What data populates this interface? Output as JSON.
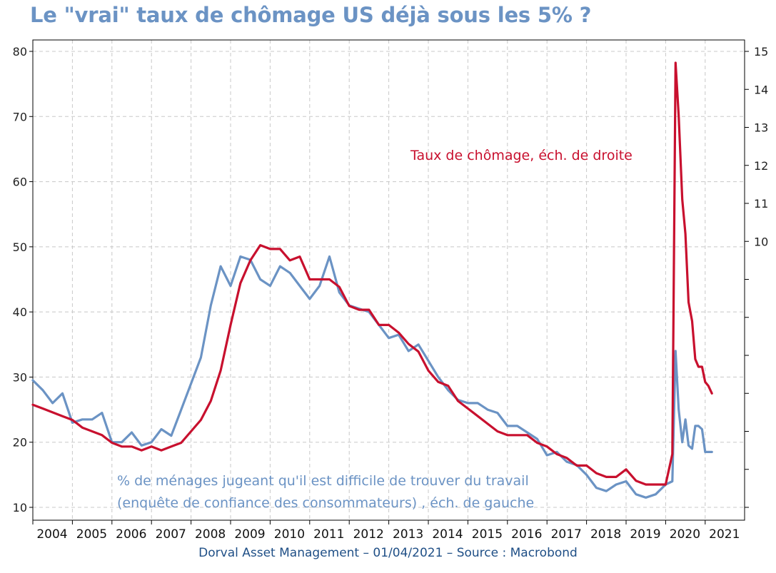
{
  "title": "Le \"vrai\" taux de chômage US déjà sous les 5% ?",
  "footer": "Dorval Asset Management – 01/04/2021 –  Source : Macrobond",
  "colors": {
    "title": "#6b93c4",
    "red_series": "#c8102e",
    "blue_series": "#6b93c4",
    "grid": "#c8c8c8",
    "footer": "#1f4f86"
  },
  "chart_data": {
    "type": "line",
    "title": "Le \"vrai\" taux de chômage US déjà sous les 5% ?",
    "grid": true,
    "x_ticks": [
      "2004",
      "2005",
      "2006",
      "2007",
      "2008",
      "2009",
      "2010",
      "2011",
      "2012",
      "2013",
      "2014",
      "2015",
      "2016",
      "2017",
      "2018",
      "2019",
      "2020",
      "2021"
    ],
    "y_left": {
      "ticks": [
        "10",
        "20",
        "30",
        "40",
        "50",
        "60",
        "70",
        "80"
      ],
      "range": [
        10,
        80
      ]
    },
    "y_right": {
      "labeled_ticks": [
        "10",
        "11",
        "12",
        "13",
        "14",
        "15"
      ],
      "range": [
        3,
        15
      ],
      "note": "ticks from 3 to 9 shown without labels"
    },
    "annotations": {
      "red": "Taux de chômage, éch. de droite",
      "blue_line1": "% de ménages jugeant qu'il est difficile de trouver du travail",
      "blue_line2": "(enquête de confiance des consommateurs) , éch. de gauche"
    },
    "series": [
      {
        "name": "Taux de chômage, éch. de droite",
        "axis": "right",
        "color": "#c8102e",
        "x": [
          2004.0,
          2004.25,
          2004.5,
          2004.75,
          2005.0,
          2005.25,
          2005.5,
          2005.75,
          2006.0,
          2006.25,
          2006.5,
          2006.75,
          2007.0,
          2007.25,
          2007.5,
          2007.75,
          2008.0,
          2008.25,
          2008.5,
          2008.75,
          2009.0,
          2009.25,
          2009.5,
          2009.75,
          2010.0,
          2010.25,
          2010.5,
          2010.75,
          2011.0,
          2011.25,
          2011.5,
          2011.75,
          2012.0,
          2012.25,
          2012.5,
          2012.75,
          2013.0,
          2013.25,
          2013.5,
          2013.75,
          2014.0,
          2014.25,
          2014.5,
          2014.75,
          2015.0,
          2015.25,
          2015.5,
          2015.75,
          2016.0,
          2016.25,
          2016.5,
          2016.75,
          2017.0,
          2017.25,
          2017.5,
          2017.75,
          2018.0,
          2018.25,
          2018.5,
          2018.75,
          2019.0,
          2019.25,
          2019.5,
          2019.75,
          2020.0,
          2020.17,
          2020.25,
          2020.33,
          2020.42,
          2020.5,
          2020.58,
          2020.67,
          2020.75,
          2020.83,
          2020.92,
          2021.0,
          2021.08,
          2021.17
        ],
        "values": [
          5.7,
          5.6,
          5.5,
          5.4,
          5.3,
          5.1,
          5.0,
          4.9,
          4.7,
          4.6,
          4.6,
          4.5,
          4.6,
          4.5,
          4.6,
          4.7,
          5.0,
          5.3,
          5.8,
          6.6,
          7.8,
          8.9,
          9.5,
          9.9,
          9.8,
          9.8,
          9.5,
          9.6,
          9.0,
          9.0,
          9.0,
          8.8,
          8.3,
          8.2,
          8.2,
          7.8,
          7.8,
          7.6,
          7.3,
          7.1,
          6.6,
          6.3,
          6.2,
          5.8,
          5.6,
          5.4,
          5.2,
          5.0,
          4.9,
          4.9,
          4.9,
          4.7,
          4.6,
          4.4,
          4.3,
          4.1,
          4.1,
          3.9,
          3.8,
          3.8,
          4.0,
          3.7,
          3.6,
          3.6,
          3.6,
          4.4,
          14.7,
          13.3,
          11.1,
          10.2,
          8.4,
          7.9,
          6.9,
          6.7,
          6.7,
          6.3,
          6.2,
          6.0
        ]
      },
      {
        "name": "% de ménages jugeant qu'il est difficile de trouver du travail",
        "axis": "left",
        "color": "#6b93c4",
        "x": [
          2004.0,
          2004.25,
          2004.5,
          2004.75,
          2005.0,
          2005.25,
          2005.5,
          2005.75,
          2006.0,
          2006.25,
          2006.5,
          2006.75,
          2007.0,
          2007.25,
          2007.5,
          2007.75,
          2008.0,
          2008.25,
          2008.5,
          2008.75,
          2009.0,
          2009.25,
          2009.5,
          2009.75,
          2010.0,
          2010.25,
          2010.5,
          2010.75,
          2011.0,
          2011.25,
          2011.5,
          2011.75,
          2012.0,
          2012.25,
          2012.5,
          2012.75,
          2013.0,
          2013.25,
          2013.5,
          2013.75,
          2014.0,
          2014.25,
          2014.5,
          2014.75,
          2015.0,
          2015.25,
          2015.5,
          2015.75,
          2016.0,
          2016.25,
          2016.5,
          2016.75,
          2017.0,
          2017.25,
          2017.5,
          2017.75,
          2018.0,
          2018.25,
          2018.5,
          2018.75,
          2019.0,
          2019.25,
          2019.5,
          2019.75,
          2020.0,
          2020.17,
          2020.25,
          2020.33,
          2020.42,
          2020.5,
          2020.58,
          2020.67,
          2020.75,
          2020.83,
          2020.92,
          2021.0,
          2021.08,
          2021.17
        ],
        "values": [
          29.5,
          28.0,
          26.0,
          27.5,
          23.0,
          23.5,
          23.5,
          24.5,
          20.0,
          20.0,
          21.5,
          19.5,
          20.0,
          22.0,
          21.0,
          25.0,
          29.0,
          33.0,
          41.0,
          47.0,
          44.0,
          48.5,
          48.0,
          45.0,
          44.0,
          47.0,
          46.0,
          44.0,
          42.0,
          44.0,
          48.5,
          43.0,
          41.0,
          40.5,
          40.0,
          38.0,
          36.0,
          36.5,
          34.0,
          35.0,
          32.5,
          30.0,
          28.0,
          26.5,
          26.0,
          26.0,
          25.0,
          24.5,
          22.5,
          22.5,
          21.5,
          20.5,
          18.0,
          18.5,
          17.0,
          16.5,
          15.0,
          13.0,
          12.5,
          13.5,
          14.0,
          12.0,
          11.5,
          12.0,
          13.5,
          14.0,
          34.0,
          25.0,
          20.0,
          23.5,
          19.5,
          19.0,
          22.5,
          22.5,
          22.0,
          18.5,
          18.5,
          18.5
        ]
      }
    ]
  }
}
